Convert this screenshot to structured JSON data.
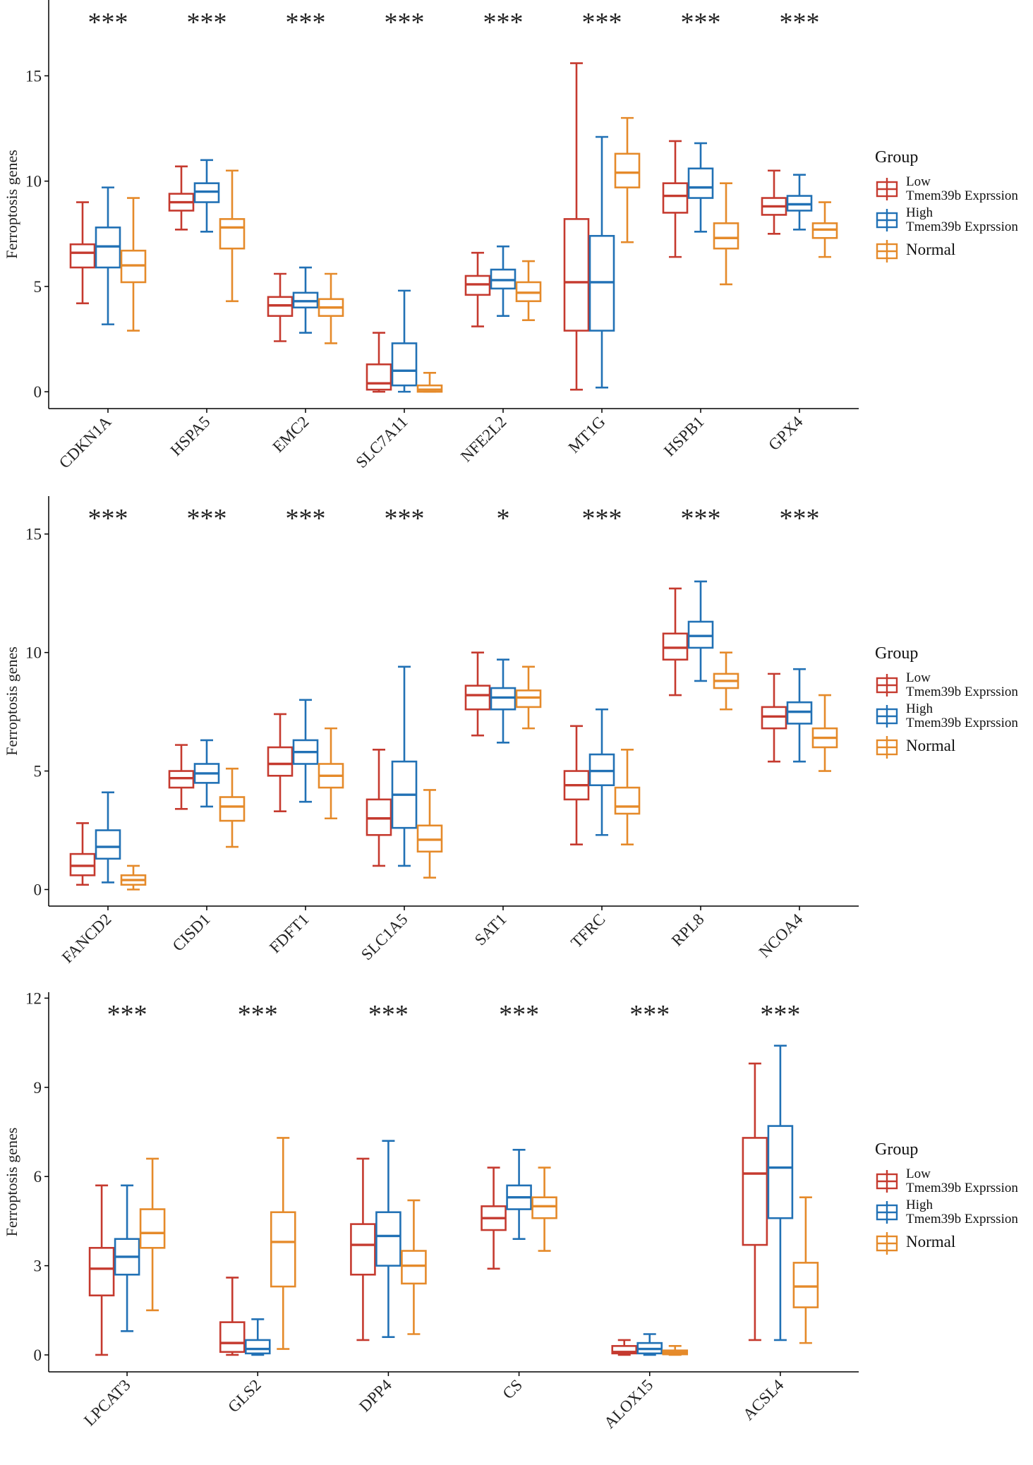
{
  "chart_data": [
    {
      "type": "box",
      "ylabel": "Ferroptosis genes",
      "legend_title": "Group",
      "legend": "right",
      "categories": [
        "CDKN1A",
        "HSPA5",
        "EMC2",
        "SLC7A11",
        "NFE2L2",
        "MT1G",
        "HSPB1",
        "GPX4"
      ],
      "annotations": [
        "***",
        "***",
        "***",
        "***",
        "***",
        "***",
        "***",
        "***"
      ],
      "ylim": [
        -0.8,
        18.6
      ],
      "yticks": [
        0,
        5,
        10,
        15
      ],
      "series": [
        {
          "name": "Low\nTmem39b Exprssion",
          "color": "#c53a2f",
          "values": [
            [
              4.2,
              5.9,
              6.6,
              7.0,
              9.0
            ],
            [
              7.7,
              8.6,
              9.0,
              9.4,
              10.7
            ],
            [
              2.4,
              3.6,
              4.1,
              4.5,
              5.6
            ],
            [
              0,
              0.1,
              0.4,
              1.3,
              2.8
            ],
            [
              3.1,
              4.6,
              5.1,
              5.5,
              6.6
            ],
            [
              0.1,
              2.9,
              5.2,
              8.2,
              15.6
            ],
            [
              6.4,
              8.5,
              9.3,
              9.9,
              11.9
            ],
            [
              7.5,
              8.4,
              8.8,
              9.2,
              10.5
            ]
          ]
        },
        {
          "name": "High\nTmem39b Exprssion",
          "color": "#2171b5",
          "values": [
            [
              3.2,
              5.9,
              6.9,
              7.8,
              9.7
            ],
            [
              7.6,
              9.0,
              9.5,
              9.9,
              11.0
            ],
            [
              2.8,
              4.0,
              4.3,
              4.7,
              5.9
            ],
            [
              0,
              0.3,
              1.0,
              2.3,
              4.8
            ],
            [
              3.6,
              4.9,
              5.3,
              5.8,
              6.9
            ],
            [
              0.2,
              2.9,
              5.2,
              7.4,
              12.1
            ],
            [
              7.6,
              9.2,
              9.7,
              10.6,
              11.8
            ],
            [
              7.7,
              8.6,
              8.9,
              9.3,
              10.3
            ]
          ]
        },
        {
          "name": "Normal",
          "color": "#e58a2a",
          "values": [
            [
              2.9,
              5.2,
              6.0,
              6.7,
              9.2
            ],
            [
              4.3,
              6.8,
              7.8,
              8.2,
              10.5
            ],
            [
              2.3,
              3.6,
              4.0,
              4.4,
              5.6
            ],
            [
              0,
              0,
              0.1,
              0.3,
              0.9
            ],
            [
              3.4,
              4.3,
              4.7,
              5.2,
              6.2
            ],
            [
              7.1,
              9.7,
              10.4,
              11.3,
              13.0
            ],
            [
              5.1,
              6.8,
              7.3,
              8.0,
              9.9
            ],
            [
              6.4,
              7.3,
              7.7,
              8.0,
              9.0
            ]
          ]
        }
      ]
    },
    {
      "type": "box",
      "ylabel": "Ferroptosis genes",
      "legend_title": "Group",
      "legend": "right",
      "categories": [
        "FANCD2",
        "CISD1",
        "FDFT1",
        "SLC1A5",
        "SAT1",
        "TFRC",
        "RPL8",
        "NCOA4"
      ],
      "annotations": [
        "***",
        "***",
        "***",
        "***",
        "*",
        "***",
        "***",
        "***"
      ],
      "ylim": [
        -0.7,
        16.6
      ],
      "yticks": [
        0,
        5,
        10,
        15
      ],
      "series": [
        {
          "name": "Low\nTmem39b Exprssion",
          "color": "#c53a2f",
          "values": [
            [
              0.2,
              0.6,
              1.0,
              1.5,
              2.8
            ],
            [
              3.4,
              4.3,
              4.7,
              5.0,
              6.1
            ],
            [
              3.3,
              4.8,
              5.3,
              6.0,
              7.4
            ],
            [
              1.0,
              2.3,
              3.0,
              3.8,
              5.9
            ],
            [
              6.5,
              7.6,
              8.2,
              8.6,
              10.0
            ],
            [
              1.9,
              3.8,
              4.4,
              5.0,
              6.9
            ],
            [
              8.2,
              9.7,
              10.2,
              10.8,
              12.7
            ],
            [
              5.4,
              6.8,
              7.3,
              7.7,
              9.1
            ]
          ]
        },
        {
          "name": "High\nTmem39b Exprssion",
          "color": "#2171b5",
          "values": [
            [
              0.3,
              1.3,
              1.8,
              2.5,
              4.1
            ],
            [
              3.5,
              4.5,
              4.9,
              5.3,
              6.3
            ],
            [
              3.7,
              5.3,
              5.8,
              6.3,
              8.0
            ],
            [
              1.0,
              2.6,
              4.0,
              5.4,
              9.4
            ],
            [
              6.2,
              7.6,
              8.1,
              8.5,
              9.7
            ],
            [
              2.3,
              4.4,
              5.0,
              5.7,
              7.6
            ],
            [
              8.8,
              10.2,
              10.7,
              11.3,
              13.0
            ],
            [
              5.4,
              7.0,
              7.5,
              7.9,
              9.3
            ]
          ]
        },
        {
          "name": "Normal",
          "color": "#e58a2a",
          "values": [
            [
              0,
              0.2,
              0.4,
              0.6,
              1.0
            ],
            [
              1.8,
              2.9,
              3.5,
              3.9,
              5.1
            ],
            [
              3.0,
              4.3,
              4.8,
              5.3,
              6.8
            ],
            [
              0.5,
              1.6,
              2.1,
              2.7,
              4.2
            ],
            [
              6.8,
              7.7,
              8.1,
              8.4,
              9.4
            ],
            [
              1.9,
              3.2,
              3.5,
              4.3,
              5.9
            ],
            [
              7.6,
              8.5,
              8.8,
              9.1,
              10.0
            ],
            [
              5.0,
              6.0,
              6.4,
              6.8,
              8.2
            ]
          ]
        }
      ]
    },
    {
      "type": "box",
      "ylabel": "Ferroptosis genes",
      "legend_title": "Group",
      "legend": "right",
      "categories": [
        "LPCAT3",
        "GLS2",
        "DPP4",
        "CS",
        "ALOX15",
        "ACSL4"
      ],
      "annotations": [
        "***",
        "***",
        "***",
        "***",
        "***",
        "***"
      ],
      "ylim": [
        -0.57,
        12.2
      ],
      "yticks": [
        0,
        3,
        6,
        9,
        12
      ],
      "series": [
        {
          "name": "Low\nTmem39b Exprssion",
          "color": "#c53a2f",
          "values": [
            [
              0,
              2.0,
              2.9,
              3.6,
              5.7
            ],
            [
              0,
              0.1,
              0.4,
              1.1,
              2.6
            ],
            [
              0.5,
              2.7,
              3.7,
              4.4,
              6.6
            ],
            [
              2.9,
              4.2,
              4.6,
              5.0,
              6.3
            ],
            [
              0,
              0.05,
              0.1,
              0.3,
              0.5
            ],
            [
              0.5,
              3.7,
              6.1,
              7.3,
              9.8
            ]
          ]
        },
        {
          "name": "High\nTmem39b Exprssion",
          "color": "#2171b5",
          "values": [
            [
              0.8,
              2.7,
              3.3,
              3.9,
              5.7
            ],
            [
              0,
              0.05,
              0.2,
              0.5,
              1.2
            ],
            [
              0.6,
              3.0,
              4.0,
              4.8,
              7.2
            ],
            [
              3.9,
              4.9,
              5.3,
              5.7,
              6.9
            ],
            [
              0,
              0.05,
              0.2,
              0.4,
              0.7
            ],
            [
              0.5,
              4.6,
              6.3,
              7.7,
              10.4
            ]
          ]
        },
        {
          "name": "Normal",
          "color": "#e58a2a",
          "values": [
            [
              1.5,
              3.6,
              4.1,
              4.9,
              6.6
            ],
            [
              0.2,
              2.3,
              3.8,
              4.8,
              7.3
            ],
            [
              0.7,
              2.4,
              3.0,
              3.5,
              5.2
            ],
            [
              3.5,
              4.6,
              5.0,
              5.3,
              6.3
            ],
            [
              0,
              0.02,
              0.08,
              0.15,
              0.3
            ],
            [
              0.4,
              1.6,
              2.3,
              3.1,
              5.3
            ]
          ]
        }
      ]
    }
  ]
}
